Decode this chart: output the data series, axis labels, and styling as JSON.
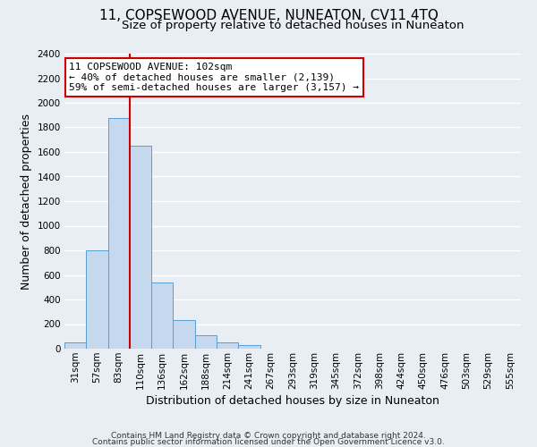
{
  "title": "11, COPSEWOOD AVENUE, NUNEATON, CV11 4TQ",
  "subtitle": "Size of property relative to detached houses in Nuneaton",
  "xlabel": "Distribution of detached houses by size in Nuneaton",
  "ylabel": "Number of detached properties",
  "bin_labels": [
    "31sqm",
    "57sqm",
    "83sqm",
    "110sqm",
    "136sqm",
    "162sqm",
    "188sqm",
    "214sqm",
    "241sqm",
    "267sqm",
    "293sqm",
    "319sqm",
    "345sqm",
    "372sqm",
    "398sqm",
    "424sqm",
    "450sqm",
    "476sqm",
    "503sqm",
    "529sqm",
    "555sqm"
  ],
  "bar_heights": [
    50,
    800,
    1880,
    1650,
    540,
    235,
    110,
    50,
    30,
    0,
    0,
    0,
    0,
    0,
    0,
    0,
    0,
    0,
    0,
    0,
    0
  ],
  "bar_color": "#c5d8ed",
  "bar_edge_color": "#5a9fd4",
  "vline_x_index": 3,
  "vline_color": "#cc0000",
  "ylim": [
    0,
    2400
  ],
  "yticks": [
    0,
    200,
    400,
    600,
    800,
    1000,
    1200,
    1400,
    1600,
    1800,
    2000,
    2200,
    2400
  ],
  "annotation_title": "11 COPSEWOOD AVENUE: 102sqm",
  "annotation_line1": "← 40% of detached houses are smaller (2,139)",
  "annotation_line2": "59% of semi-detached houses are larger (3,157) →",
  "annotation_box_color": "#ffffff",
  "annotation_box_edge": "#cc0000",
  "footer1": "Contains HM Land Registry data © Crown copyright and database right 2024.",
  "footer2": "Contains public sector information licensed under the Open Government Licence v3.0.",
  "background_color": "#e8eef4",
  "plot_bg_color": "#e8eef4",
  "grid_color": "#ffffff",
  "title_fontsize": 11,
  "subtitle_fontsize": 9.5,
  "axis_label_fontsize": 9,
  "tick_fontsize": 7.5,
  "annotation_fontsize": 8,
  "footer_fontsize": 6.5
}
